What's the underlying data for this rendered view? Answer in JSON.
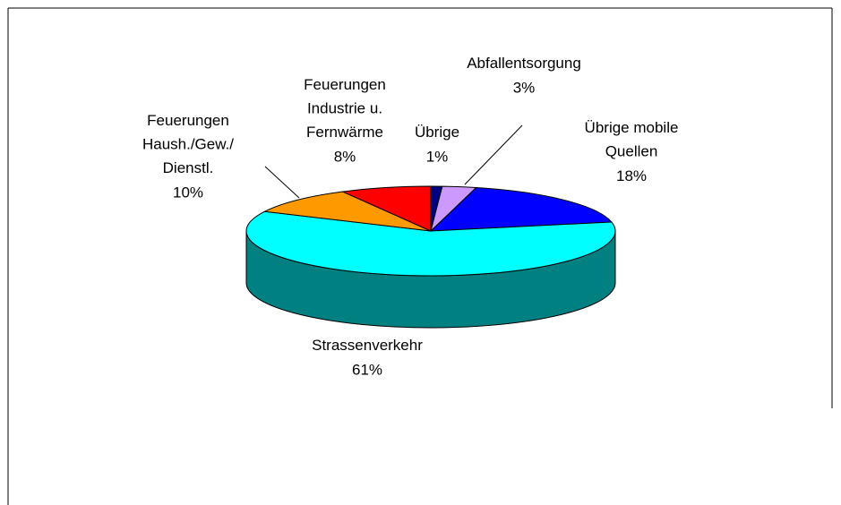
{
  "chart_data": {
    "type": "pie3d",
    "categories": [
      "Übrige",
      "Abfallentsorgung",
      "Übrige mobile\nQuellen",
      "Strassenverkehr",
      "Feuerungen\nHaush./Gew./\nDienstl.",
      "Feuerungen\nIndustrie u.\nFernwärme"
    ],
    "values": [
      1,
      3,
      18,
      61,
      10,
      8
    ],
    "value_labels": [
      "1%",
      "3%",
      "18%",
      "61%",
      "10%",
      "8%"
    ],
    "colors": [
      "#000080",
      "#cc99ff",
      "#0000ff",
      "#00ffff",
      "#ff9900",
      "#ff0000"
    ]
  }
}
